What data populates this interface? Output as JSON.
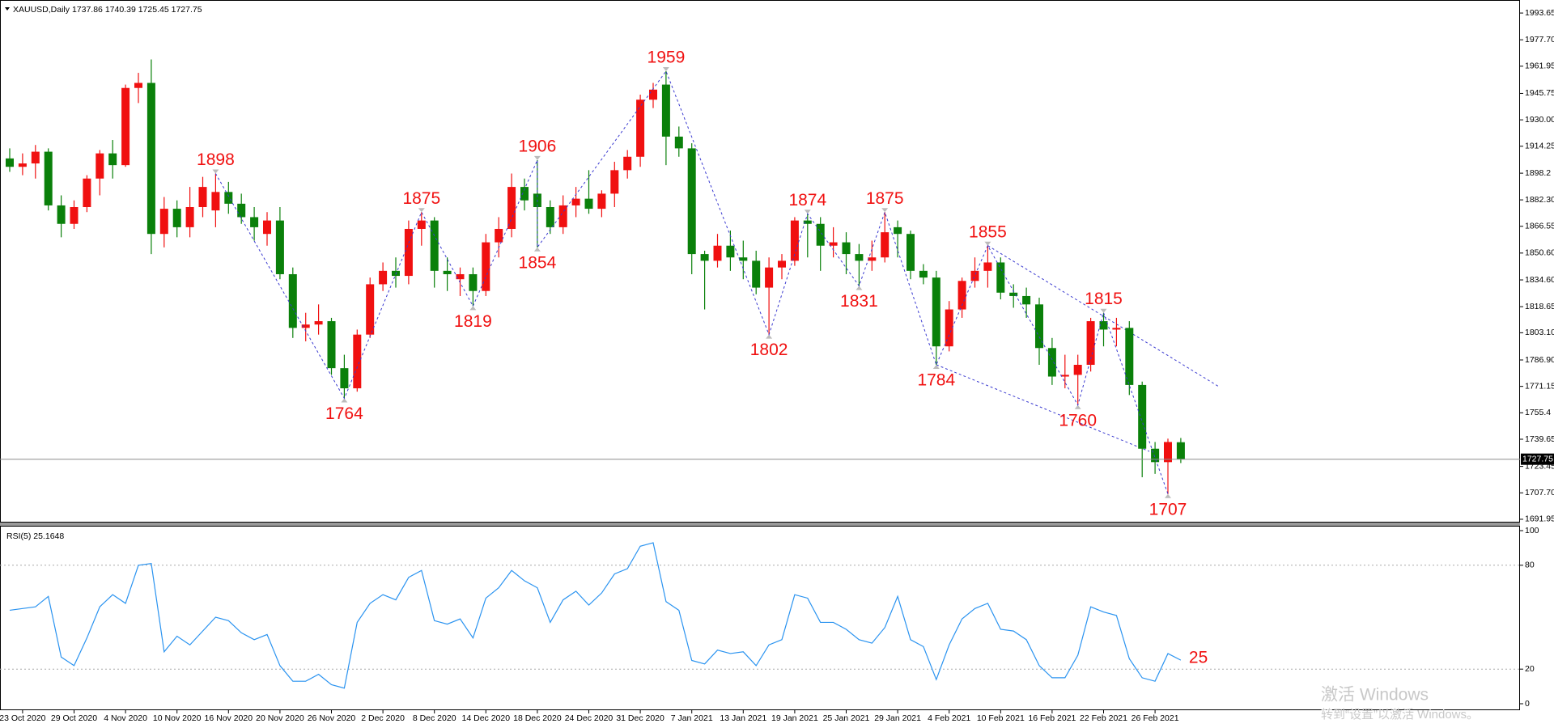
{
  "chart_data": [
    {
      "type": "candlestick",
      "title": "XAUUSD,Daily",
      "categories": [
        null,
        "23 Oct 2020",
        null,
        null,
        null,
        "29 Oct 2020",
        null,
        null,
        null,
        "4 Nov 2020",
        null,
        null,
        null,
        "10 Nov 2020",
        null,
        null,
        null,
        "16 Nov 2020",
        null,
        null,
        null,
        "20 Nov 2020",
        null,
        null,
        null,
        "26 Nov 2020",
        null,
        null,
        null,
        "2 Dec 2020",
        null,
        null,
        null,
        "8 Dec 2020",
        null,
        null,
        null,
        "14 Dec 2020",
        null,
        null,
        null,
        "18 Dec 2020",
        null,
        null,
        null,
        "24 Dec 2020",
        null,
        null,
        null,
        "31 Dec 2020",
        null,
        null,
        null,
        "7 Jan 2021",
        null,
        null,
        null,
        "13 Jan 2021",
        null,
        null,
        null,
        "19 Jan 2021",
        null,
        null,
        null,
        "25 Jan 2021",
        null,
        null,
        null,
        "29 Jan 2021",
        null,
        null,
        null,
        "4 Feb 2021",
        null,
        null,
        null,
        "10 Feb 2021",
        null,
        null,
        null,
        "16 Feb 2021",
        null,
        null,
        null,
        "22 Feb 2021",
        null,
        null,
        null,
        "26 Feb 2021",
        null,
        null
      ],
      "candles": [
        [
          1907,
          1913,
          1899,
          1902
        ],
        [
          1902,
          1910,
          1897,
          1904
        ],
        [
          1904,
          1915,
          1895,
          1911
        ],
        [
          1911,
          1913,
          1876,
          1879
        ],
        [
          1879,
          1885,
          1860,
          1868
        ],
        [
          1868,
          1882,
          1865,
          1878
        ],
        [
          1878,
          1897,
          1875,
          1895
        ],
        [
          1895,
          1912,
          1885,
          1910
        ],
        [
          1910,
          1918,
          1895,
          1903
        ],
        [
          1903,
          1951,
          1902,
          1949
        ],
        [
          1949,
          1958,
          1940,
          1952
        ],
        [
          1952,
          1966,
          1850,
          1862
        ],
        [
          1862,
          1884,
          1854,
          1877
        ],
        [
          1877,
          1882,
          1860,
          1866
        ],
        [
          1866,
          1890,
          1860,
          1878
        ],
        [
          1878,
          1896,
          1872,
          1890
        ],
        [
          1876,
          1898,
          1866,
          1887
        ],
        [
          1887,
          1893,
          1874,
          1880
        ],
        [
          1880,
          1886,
          1868,
          1872
        ],
        [
          1872,
          1878,
          1858,
          1866
        ],
        [
          1862,
          1875,
          1855,
          1870
        ],
        [
          1870,
          1878,
          1835,
          1838
        ],
        [
          1838,
          1842,
          1800,
          1806
        ],
        [
          1806,
          1815,
          1798,
          1808
        ],
        [
          1808,
          1820,
          1802,
          1810
        ],
        [
          1810,
          1812,
          1778,
          1782
        ],
        [
          1782,
          1790,
          1764,
          1770
        ],
        [
          1770,
          1805,
          1768,
          1802
        ],
        [
          1802,
          1836,
          1800,
          1832
        ],
        [
          1832,
          1845,
          1828,
          1840
        ],
        [
          1840,
          1848,
          1830,
          1837
        ],
        [
          1837,
          1870,
          1832,
          1865
        ],
        [
          1865,
          1875,
          1855,
          1870
        ],
        [
          1870,
          1872,
          1830,
          1840
        ],
        [
          1840,
          1848,
          1828,
          1838
        ],
        [
          1835,
          1842,
          1825,
          1838
        ],
        [
          1838,
          1842,
          1819,
          1828
        ],
        [
          1828,
          1862,
          1825,
          1857
        ],
        [
          1857,
          1872,
          1848,
          1865
        ],
        [
          1865,
          1898,
          1860,
          1890
        ],
        [
          1890,
          1895,
          1876,
          1882
        ],
        [
          1886,
          1906,
          1854,
          1878
        ],
        [
          1878,
          1882,
          1862,
          1866
        ],
        [
          1866,
          1885,
          1862,
          1879
        ],
        [
          1879,
          1890,
          1872,
          1883
        ],
        [
          1883,
          1900,
          1874,
          1877
        ],
        [
          1877,
          1888,
          1872,
          1886
        ],
        [
          1886,
          1905,
          1878,
          1900
        ],
        [
          1900,
          1912,
          1895,
          1908
        ],
        [
          1908,
          1945,
          1902,
          1942
        ],
        [
          1942,
          1952,
          1937,
          1948
        ],
        [
          1951,
          1959,
          1903,
          1920
        ],
        [
          1920,
          1926,
          1908,
          1913
        ],
        [
          1913,
          1916,
          1838,
          1850
        ],
        [
          1850,
          1852,
          1817,
          1846
        ],
        [
          1846,
          1862,
          1842,
          1855
        ],
        [
          1855,
          1864,
          1840,
          1848
        ],
        [
          1848,
          1858,
          1835,
          1846
        ],
        [
          1846,
          1852,
          1826,
          1830
        ],
        [
          1830,
          1848,
          1802,
          1842
        ],
        [
          1842,
          1850,
          1835,
          1846
        ],
        [
          1846,
          1872,
          1843,
          1870
        ],
        [
          1870,
          1874,
          1848,
          1868
        ],
        [
          1868,
          1872,
          1840,
          1855
        ],
        [
          1855,
          1866,
          1848,
          1857
        ],
        [
          1857,
          1863,
          1838,
          1850
        ],
        [
          1850,
          1856,
          1831,
          1846
        ],
        [
          1846,
          1858,
          1840,
          1848
        ],
        [
          1848,
          1875,
          1845,
          1863
        ],
        [
          1866,
          1870,
          1848,
          1862
        ],
        [
          1862,
          1864,
          1835,
          1840
        ],
        [
          1840,
          1844,
          1832,
          1836
        ],
        [
          1836,
          1840,
          1784,
          1795
        ],
        [
          1795,
          1822,
          1792,
          1817
        ],
        [
          1817,
          1836,
          1812,
          1834
        ],
        [
          1834,
          1848,
          1830,
          1840
        ],
        [
          1840,
          1855,
          1830,
          1845
        ],
        [
          1845,
          1848,
          1823,
          1827
        ],
        [
          1827,
          1832,
          1818,
          1825
        ],
        [
          1825,
          1830,
          1812,
          1820
        ],
        [
          1820,
          1824,
          1784,
          1794
        ],
        [
          1794,
          1800,
          1772,
          1777
        ],
        [
          1777,
          1790,
          1770,
          1778
        ],
        [
          1778,
          1790,
          1760,
          1784
        ],
        [
          1784,
          1812,
          1780,
          1810
        ],
        [
          1810,
          1815,
          1795,
          1805
        ],
        [
          1805,
          1812,
          1795,
          1806
        ],
        [
          1806,
          1810,
          1766,
          1772
        ],
        [
          1772,
          1774,
          1717,
          1734
        ],
        [
          1734,
          1738,
          1719,
          1726
        ],
        [
          1726,
          1740,
          1707,
          1738
        ],
        [
          1737.86,
          1740.39,
          1725.45,
          1727.75
        ]
      ],
      "up_color": "#f01010",
      "down_color": "#0a800a",
      "ylim": [
        1690,
        1999
      ],
      "yticks": [
        1993.65,
        {
          "value": 1977.7,
          "label": "1977.70"
        },
        1961.95,
        1945.75,
        {
          "value": 1930,
          "label": "1930.00"
        },
        1914.25,
        1898.2,
        {
          "value": 1882.3,
          "label": "1882.30"
        },
        1866.55,
        {
          "value": 1850.6,
          "label": "1850.60"
        },
        {
          "value": 1834.6,
          "label": "1834.60"
        },
        1818.65,
        {
          "value": 1803.1,
          "label": "1803.10"
        },
        {
          "value": 1786.9,
          "label": "1786.90"
        },
        1771.15,
        1755.4,
        1739.65,
        1723.45,
        {
          "value": 1707.7,
          "label": "1707.70"
        },
        1691.95
      ],
      "pivots": [
        1898,
        1764,
        1875,
        1819,
        1906,
        1854,
        1959,
        1802,
        1874,
        1831,
        1875,
        1784,
        1855,
        1760,
        1815,
        1707
      ],
      "pivot_color": "#f01010",
      "zigzag_color": "#3a3ad0"
    },
    {
      "type": "line",
      "title": "RSI(5) 25.1648",
      "values": [
        54,
        55,
        56,
        62,
        27,
        22,
        38,
        56,
        63,
        58,
        80,
        81,
        30,
        39,
        34,
        42,
        50,
        48,
        41,
        37,
        40,
        22,
        13,
        13,
        17,
        11,
        9,
        47,
        58,
        63,
        60,
        73,
        77,
        48,
        46,
        49,
        38,
        61,
        67,
        77,
        71,
        67,
        47,
        60,
        65,
        57,
        64,
        75,
        78,
        91,
        93,
        59,
        54,
        25,
        23,
        31,
        29,
        30,
        22,
        34,
        37,
        63,
        61,
        47,
        47,
        43,
        37,
        35,
        44,
        62,
        37,
        33,
        14,
        34,
        49,
        55,
        58,
        43,
        42,
        37,
        22,
        15,
        15,
        28,
        56,
        53,
        51,
        26,
        15,
        13,
        29,
        25.1648
      ],
      "color": "#2a93f0",
      "ylim": [
        0,
        100
      ],
      "yticks": [
        100,
        80,
        20,
        0
      ],
      "levels": [
        80,
        20
      ],
      "annotation": "25",
      "annotation_color": "#f01010"
    }
  ],
  "watermark": [
    "激活 Windows",
    "转到“设置”以激活 Windows。"
  ]
}
